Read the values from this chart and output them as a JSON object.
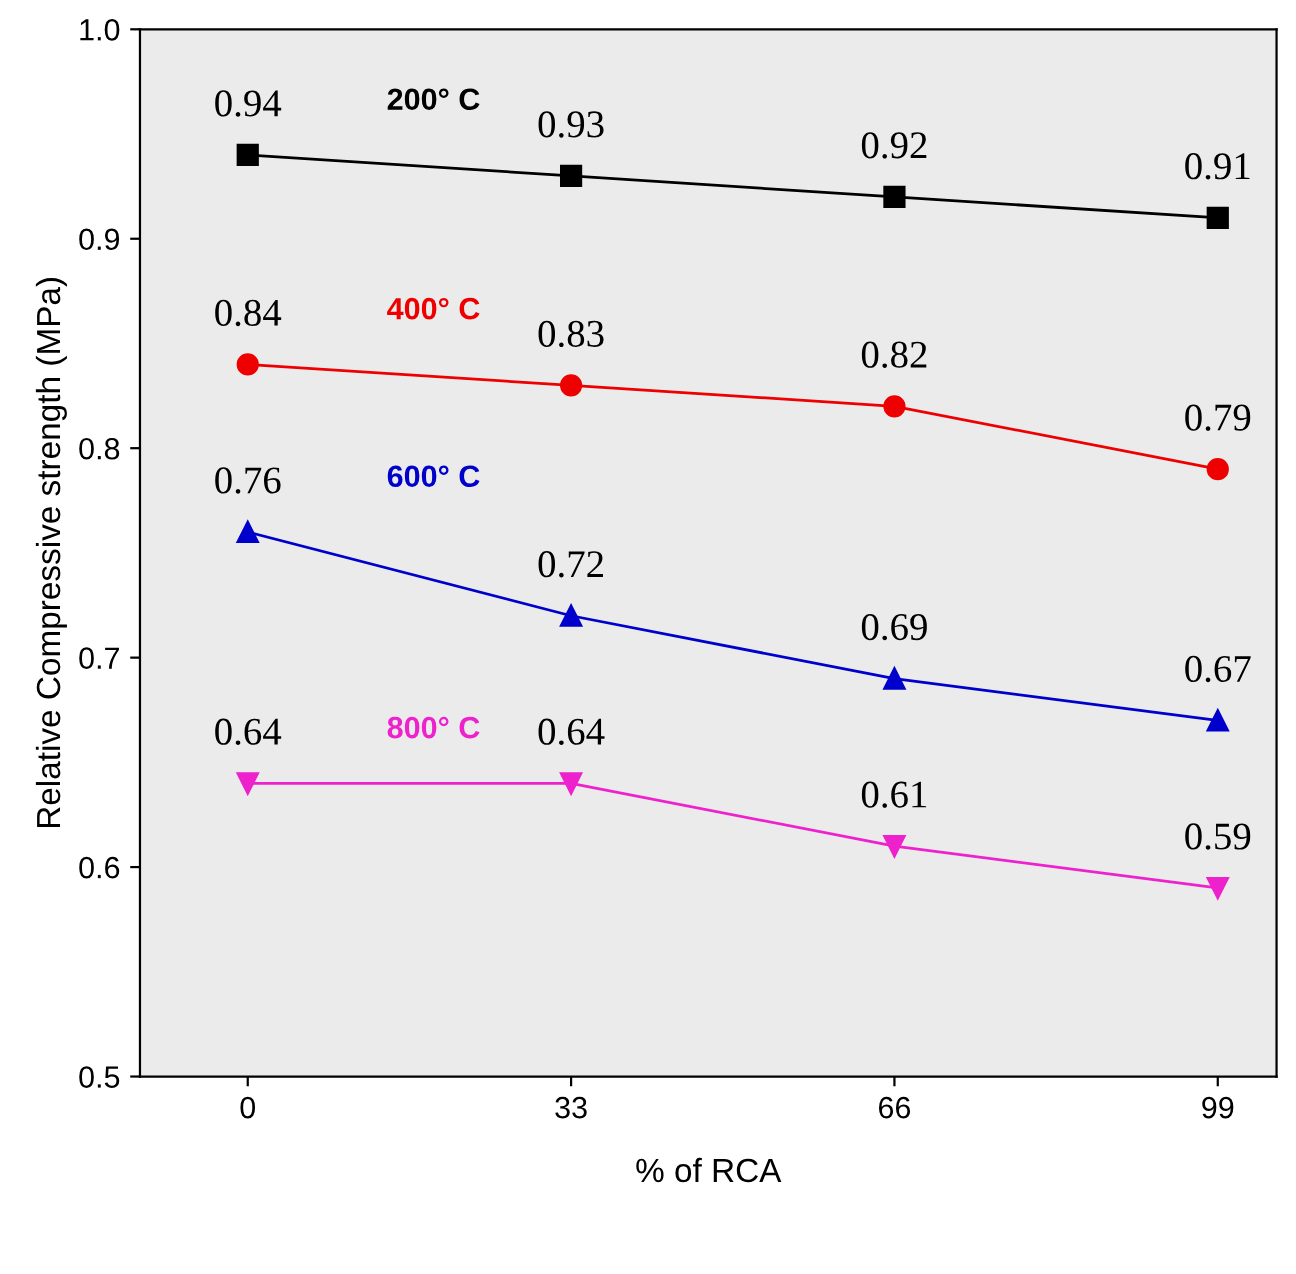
{
  "chart_data": {
    "type": "line",
    "xlabel": "% of RCA",
    "ylabel": "Relative Compressive strength (MPa)",
    "x": [
      0,
      33,
      66,
      99
    ],
    "xlim": [
      -11,
      105
    ],
    "xticks": [
      0,
      33,
      66,
      99
    ],
    "ylim": [
      0.5,
      1.0
    ],
    "yticks": [
      {
        "value": 0.5,
        "label": "0.5"
      },
      {
        "value": 0.6,
        "label": "0.6"
      },
      {
        "value": 0.7,
        "label": "0.7"
      },
      {
        "value": 0.8,
        "label": "0.8"
      },
      {
        "value": 0.9,
        "label": "0.9"
      },
      {
        "value": 1.0,
        "label": "1.0"
      }
    ],
    "data_labels": true,
    "grid": false,
    "line_style": "solid",
    "series": [
      {
        "name": "200° C",
        "color": "#000000",
        "marker": "square",
        "values": [
          0.94,
          0.93,
          0.92,
          0.91
        ]
      },
      {
        "name": "400° C",
        "color": "#ee0000",
        "marker": "circle",
        "values": [
          0.84,
          0.83,
          0.82,
          0.79
        ]
      },
      {
        "name": "600° C",
        "color": "#0000cc",
        "marker": "triangle",
        "values": [
          0.76,
          0.72,
          0.69,
          0.67
        ]
      },
      {
        "name": "800° C",
        "color": "#ee22cc",
        "marker": "triangle_down",
        "values": [
          0.64,
          0.64,
          0.61,
          0.59
        ]
      }
    ]
  }
}
